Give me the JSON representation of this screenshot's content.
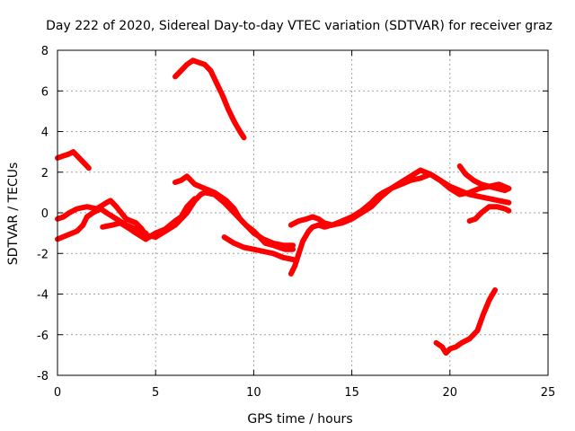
{
  "chart_data": {
    "type": "line",
    "title": "Day 222 of 2020, Sidereal Day-to-day VTEC variation (SDTVAR) for receiver graz",
    "xlabel": "GPS time / hours",
    "ylabel": "SDTVAR / TECUs",
    "xlim": [
      0,
      25
    ],
    "ylim": [
      -8,
      8
    ],
    "xticks": [
      0,
      5,
      10,
      15,
      20,
      25
    ],
    "yticks": [
      -8,
      -6,
      -4,
      -2,
      0,
      2,
      4,
      6,
      8
    ],
    "grid": true,
    "color": "#ff0000",
    "series": [
      {
        "name": "seg1",
        "x": [
          0.0,
          0.3,
          0.6,
          0.8,
          1.0,
          1.3,
          1.6
        ],
        "y": [
          2.7,
          2.8,
          2.9,
          3.0,
          2.8,
          2.5,
          2.2
        ]
      },
      {
        "name": "seg2",
        "x": [
          0.0,
          0.3,
          0.6,
          1.0,
          1.5,
          2.0,
          2.5,
          2.7,
          3.0,
          3.5,
          4.0,
          4.3,
          4.5,
          5.0,
          5.5,
          6.0,
          6.3,
          6.6,
          7.0,
          7.3,
          7.5,
          8.0,
          8.5,
          9.0,
          9.5,
          10.0,
          10.5,
          11.0,
          11.5,
          12.0
        ],
        "y": [
          -0.3,
          -0.2,
          0.0,
          0.2,
          0.3,
          0.2,
          0.5,
          0.6,
          0.3,
          -0.3,
          -0.5,
          -0.8,
          -1.1,
          -1.2,
          -0.9,
          -0.6,
          -0.3,
          0.0,
          0.6,
          0.9,
          1.0,
          0.9,
          0.5,
          0.0,
          -0.5,
          -1.0,
          -1.3,
          -1.5,
          -1.6,
          -1.6
        ]
      },
      {
        "name": "seg3",
        "x": [
          0.0,
          0.5,
          1.0,
          1.3,
          1.5,
          1.8,
          2.2,
          2.5,
          3.0,
          3.5,
          4.0,
          4.5
        ],
        "y": [
          -1.3,
          -1.1,
          -0.9,
          -0.6,
          -0.2,
          0.0,
          0.2,
          0.0,
          -0.3,
          -0.6,
          -0.8,
          -1.0
        ]
      },
      {
        "name": "seg4",
        "x": [
          2.3,
          2.8,
          3.2,
          3.7,
          4.0,
          4.5,
          5.0,
          5.5,
          6.0,
          6.3,
          6.6,
          7.0
        ],
        "y": [
          -0.7,
          -0.6,
          -0.5,
          -0.8,
          -1.0,
          -1.3,
          -1.0,
          -0.8,
          -0.4,
          -0.2,
          0.3,
          0.7
        ]
      },
      {
        "name": "seg5",
        "x": [
          6.0,
          6.3,
          6.6,
          7.0,
          7.5,
          8.0,
          8.3,
          8.6,
          9.0,
          9.3,
          9.6,
          10.0,
          10.3,
          10.6,
          11.0,
          11.3,
          11.6,
          12.0
        ],
        "y": [
          1.5,
          1.6,
          1.8,
          1.4,
          1.2,
          1.0,
          0.8,
          0.6,
          0.2,
          -0.3,
          -0.6,
          -0.9,
          -1.2,
          -1.5,
          -1.6,
          -1.7,
          -1.8,
          -1.8
        ]
      },
      {
        "name": "seg6",
        "x": [
          6.0,
          6.3,
          6.6,
          6.9,
          7.2,
          7.5,
          7.8,
          8.1,
          8.4,
          8.7,
          9.0,
          9.3,
          9.5
        ],
        "y": [
          6.7,
          7.0,
          7.3,
          7.5,
          7.4,
          7.3,
          7.0,
          6.4,
          5.8,
          5.1,
          4.5,
          4.0,
          3.7
        ]
      },
      {
        "name": "seg7",
        "x": [
          8.5,
          9.0,
          9.5,
          10.0,
          10.5,
          11.0,
          11.5,
          12.0
        ],
        "y": [
          -1.2,
          -1.5,
          -1.7,
          -1.8,
          -1.9,
          -2.0,
          -2.2,
          -2.3
        ]
      },
      {
        "name": "seg8",
        "x": [
          11.9,
          12.1,
          12.3,
          12.5,
          12.8,
          13.0,
          13.3,
          13.6,
          14.0,
          14.5,
          15.0,
          15.5,
          16.0,
          16.5,
          17.0,
          17.5,
          18.0,
          18.5,
          19.0,
          19.5,
          20.0,
          20.5,
          21.0,
          21.5,
          22.0,
          22.5,
          23.0
        ],
        "y": [
          -3.0,
          -2.6,
          -2.0,
          -1.4,
          -0.9,
          -0.7,
          -0.6,
          -0.7,
          -0.6,
          -0.5,
          -0.3,
          0.0,
          0.3,
          0.8,
          1.2,
          1.5,
          1.8,
          2.1,
          1.9,
          1.6,
          1.3,
          1.1,
          0.9,
          0.8,
          0.7,
          0.6,
          0.5
        ]
      },
      {
        "name": "seg9",
        "x": [
          11.9,
          12.3,
          12.7,
          13.0,
          13.3,
          13.6,
          14.0,
          14.5,
          15.0,
          15.5,
          16.0,
          16.3,
          16.6,
          17.0,
          17.5,
          18.0,
          18.5,
          19.0,
          19.5,
          20.0,
          20.5,
          21.0,
          21.5,
          22.0,
          22.5,
          23.0
        ],
        "y": [
          -0.6,
          -0.4,
          -0.3,
          -0.2,
          -0.3,
          -0.5,
          -0.6,
          -0.4,
          -0.2,
          0.1,
          0.5,
          0.8,
          1.0,
          1.2,
          1.4,
          1.6,
          1.7,
          1.9,
          1.6,
          1.2,
          0.9,
          1.0,
          1.2,
          1.3,
          1.4,
          1.2
        ]
      },
      {
        "name": "seg10",
        "x": [
          21.0,
          21.3,
          21.6,
          22.0,
          22.4,
          22.8,
          23.0
        ],
        "y": [
          -0.4,
          -0.3,
          0.0,
          0.3,
          0.3,
          0.2,
          0.1
        ]
      },
      {
        "name": "seg11",
        "x": [
          20.5,
          20.8,
          21.2,
          21.6,
          22.0,
          22.4,
          22.8,
          23.0
        ],
        "y": [
          2.3,
          1.9,
          1.6,
          1.4,
          1.3,
          1.2,
          1.1,
          1.2
        ]
      },
      {
        "name": "seg12",
        "x": [
          19.3,
          19.6,
          19.8,
          20.0,
          20.3,
          20.6,
          21.0,
          21.4,
          21.7,
          22.0,
          22.3
        ],
        "y": [
          -6.4,
          -6.6,
          -6.9,
          -6.7,
          -6.6,
          -6.4,
          -6.2,
          -5.8,
          -5.0,
          -4.3,
          -3.8
        ]
      }
    ]
  }
}
